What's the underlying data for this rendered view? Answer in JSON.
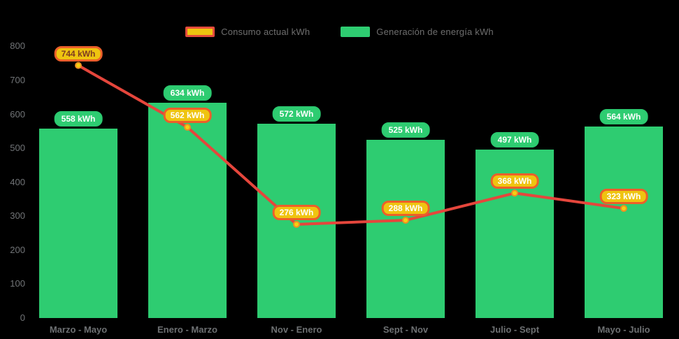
{
  "legend": {
    "items": [
      {
        "label": "Consumo actual kWh",
        "swatch": "line-swatch"
      },
      {
        "label": "Generación de energía kWh",
        "swatch": "bar-swatch"
      }
    ],
    "text_color": "#6e6e6e"
  },
  "chart_data": {
    "type": "combo-bar-line",
    "categories": [
      "Marzo - Mayo",
      "Enero - Marzo",
      "Nov - Enero",
      "Sept - Nov",
      "Julio - Sept",
      "Mayo - Julio"
    ],
    "series": [
      {
        "name": "Consumo actual kWh",
        "type": "line",
        "values": [
          744,
          562,
          276,
          288,
          368,
          323
        ],
        "labels": [
          "744 kWh",
          "562 kWh",
          "276 kWh",
          "288 kWh",
          "368 kWh",
          "323 kWh"
        ],
        "label_text_colors": [
          "#7d3b21",
          "#ffffff",
          "#ffffff",
          "#ffffff",
          "#ffffff",
          "#ffffff"
        ],
        "color": "#e5463c",
        "marker_fill": "#f6cf11",
        "marker_stroke": "#ee8f23",
        "label_bg": "#efc410",
        "label_border": "#ec5f2a"
      },
      {
        "name": "Generación de energía kWh",
        "type": "bar",
        "values": [
          558,
          634,
          572,
          525,
          497,
          564
        ],
        "labels": [
          "558 kWh",
          "634 kWh",
          "572 kWh",
          "525 kWh",
          "497 kWh",
          "564 kWh"
        ],
        "color": "#2ecc71",
        "label_bg": "#2ecc71",
        "label_text_color": "#ffffff"
      }
    ],
    "y_ticks": [
      "800",
      "700",
      "600",
      "500",
      "400",
      "300",
      "200",
      "100",
      "0"
    ],
    "y_tick_values": [
      800,
      700,
      600,
      500,
      400,
      300,
      200,
      100,
      0
    ],
    "ylim": [
      0,
      800
    ],
    "unit": "kWh",
    "grid": false,
    "legend_position": "top",
    "background": "#000000",
    "axis_text_color": "#6d7072"
  }
}
